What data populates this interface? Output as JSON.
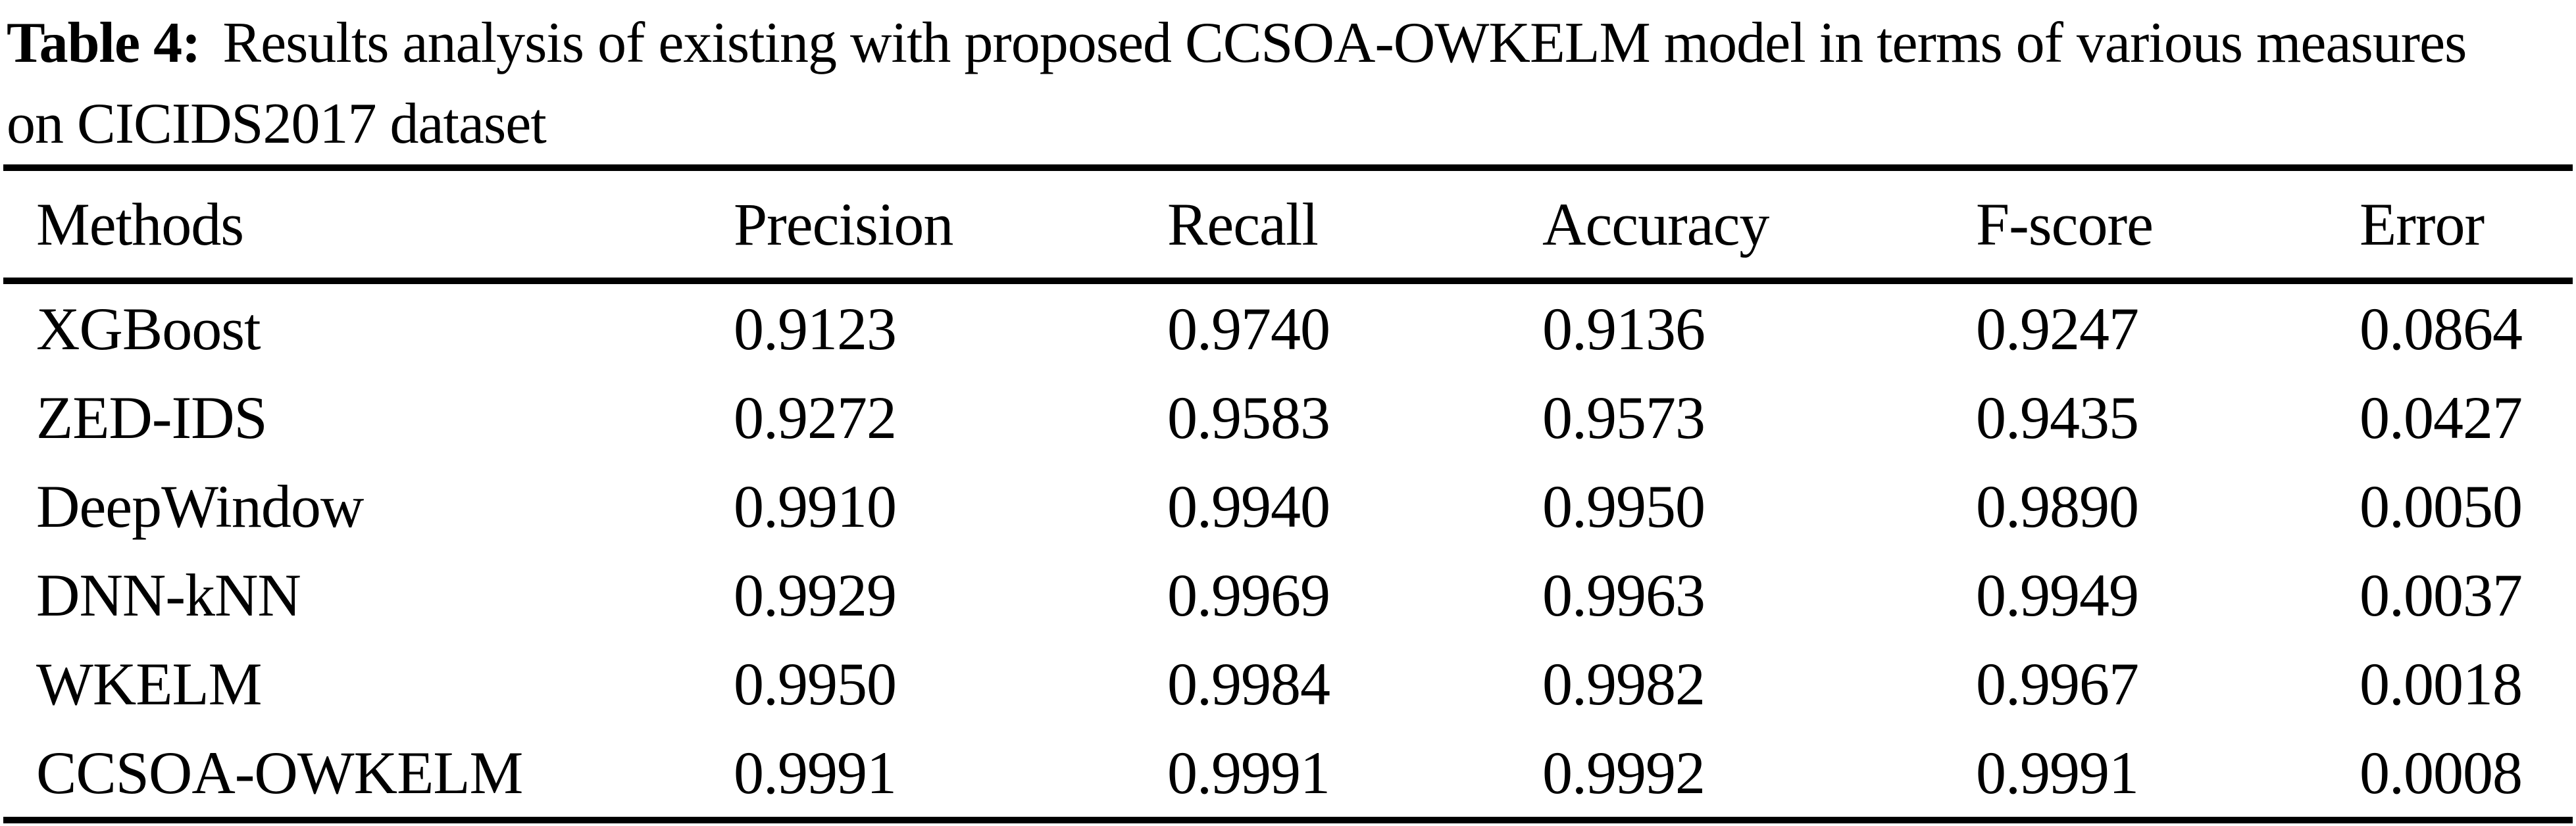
{
  "caption": {
    "label": "Table 4:",
    "line1_rest": "Results analysis of existing with proposed CCSOA-OWKELM model in terms of various measures",
    "line2": "on CICIDS2017 dataset"
  },
  "table": {
    "columns": [
      "Methods",
      "Precision",
      "Recall",
      "Accuracy",
      "F-score",
      "Error"
    ],
    "rows": [
      {
        "method": "XGBoost",
        "precision": "0.9123",
        "recall": "0.9740",
        "accuracy": "0.9136",
        "fscore": "0.9247",
        "error": "0.0864"
      },
      {
        "method": "ZED-IDS",
        "precision": "0.9272",
        "recall": "0.9583",
        "accuracy": "0.9573",
        "fscore": "0.9435",
        "error": "0.0427"
      },
      {
        "method": "DeepWindow",
        "precision": "0.9910",
        "recall": "0.9940",
        "accuracy": "0.9950",
        "fscore": "0.9890",
        "error": "0.0050"
      },
      {
        "method": "DNN-kNN",
        "precision": "0.9929",
        "recall": "0.9969",
        "accuracy": "0.9963",
        "fscore": "0.9949",
        "error": "0.0037"
      },
      {
        "method": "WKELM",
        "precision": "0.9950",
        "recall": "0.9984",
        "accuracy": "0.9982",
        "fscore": "0.9967",
        "error": "0.0018"
      },
      {
        "method": "CCSOA-OWKELM",
        "precision": "0.9991",
        "recall": "0.9991",
        "accuracy": "0.9992",
        "fscore": "0.9991",
        "error": "0.0008"
      }
    ]
  },
  "colors": {
    "text": "#000000",
    "background": "#ffffff",
    "rule": "#000000"
  }
}
